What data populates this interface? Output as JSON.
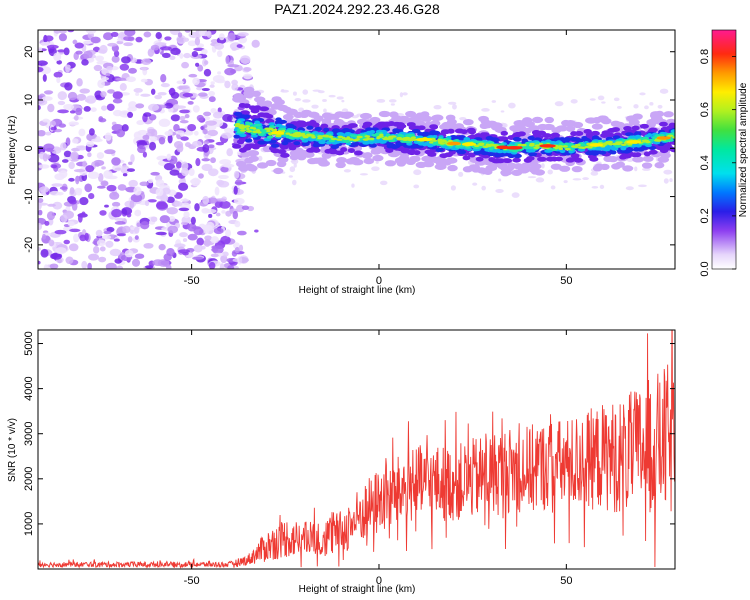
{
  "title": "PAZ1.2024.292.23.46.G28",
  "chart_data": [
    {
      "type": "heatmap",
      "xlabel": "Height of straight line (km)",
      "ylabel": "Frequency (Hz)",
      "xlim": [
        -91,
        79
      ],
      "ylim": [
        -25,
        24.5
      ],
      "x_ticks": [
        -50,
        0,
        50
      ],
      "y_ticks": [
        -20,
        -10,
        0,
        10,
        20
      ],
      "noise_region_x": [
        -91,
        -35
      ],
      "signal_track": {
        "x": [
          -38,
          -30,
          -25,
          -18,
          -12,
          -5,
          0,
          5,
          10,
          15,
          20,
          25,
          30,
          35,
          40,
          45,
          50,
          55,
          60,
          65,
          70,
          75,
          79
        ],
        "freq": [
          4.5,
          3.5,
          3,
          2.5,
          2,
          2,
          2.5,
          2,
          2,
          1.5,
          1,
          0.8,
          0.5,
          0,
          0.5,
          0.5,
          0.2,
          0.5,
          0.8,
          1,
          1.5,
          2,
          2.5
        ]
      },
      "colorbar": {
        "label": "Normalized spectral amplitude",
        "ticks": [
          0.0,
          0.2,
          0.4,
          0.6,
          0.8
        ],
        "range": [
          0,
          0.9
        ]
      },
      "grid": false
    },
    {
      "type": "line",
      "xlabel": "Height of straight line (km)",
      "ylabel": "SNR (10 * v/v)",
      "xlim": [
        -91,
        79
      ],
      "ylim": [
        0,
        5300
      ],
      "x_ticks": [
        -50,
        0,
        50
      ],
      "y_ticks": [
        1000,
        2000,
        3000,
        4000,
        5000
      ],
      "color": "#ee3a33",
      "envelope": {
        "x": [
          -91,
          -40,
          -35,
          -30,
          -25,
          -20,
          -15,
          -10,
          -5,
          0,
          5,
          10,
          15,
          20,
          25,
          30,
          35,
          40,
          45,
          50,
          55,
          60,
          65,
          70,
          75,
          79
        ],
        "mean": [
          100,
          100,
          200,
          500,
          700,
          650,
          700,
          800,
          1200,
          1500,
          1700,
          1900,
          1900,
          1900,
          2000,
          2100,
          2200,
          2200,
          2300,
          2300,
          2400,
          2500,
          2500,
          2700,
          2800,
          2900
        ],
        "spread": [
          60,
          60,
          120,
          350,
          450,
          400,
          450,
          500,
          650,
          750,
          800,
          850,
          850,
          850,
          900,
          950,
          950,
          1000,
          1000,
          1050,
          1100,
          1200,
          1300,
          1400,
          1600,
          1800
        ]
      },
      "grid": false
    }
  ]
}
